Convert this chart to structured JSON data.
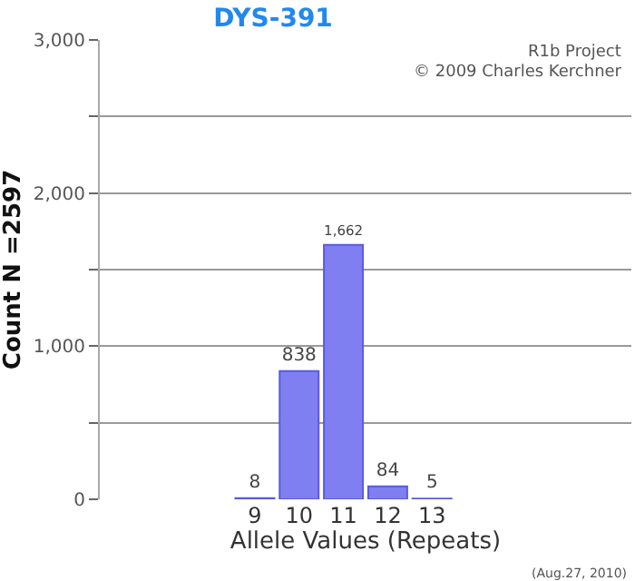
{
  "chart_data": {
    "type": "bar",
    "title": "DYS-391",
    "xlabel": "Allele Values (Repeats)",
    "ylabel": "Count N =2597",
    "categories": [
      null,
      null,
      null,
      "9",
      "10",
      "11",
      "12",
      "13",
      null,
      null,
      null,
      null
    ],
    "values": [
      null,
      null,
      null,
      8,
      838,
      1662,
      84,
      5,
      null,
      null,
      null,
      null
    ],
    "color": "#7f7ff2",
    "value_labels": [
      null,
      null,
      null,
      "8",
      "838",
      "1,662",
      "84",
      "5",
      null,
      null,
      null,
      null
    ],
    "ylim": [
      0,
      3000
    ],
    "yticks": [
      {
        "value": 0,
        "label": "0"
      },
      {
        "value": 500,
        "label": null
      },
      {
        "value": 1000,
        "label": "1,000"
      },
      {
        "value": 1500,
        "label": null
      },
      {
        "value": 2000,
        "label": "2,000"
      },
      {
        "value": 2500,
        "label": null
      },
      {
        "value": 3000,
        "label": "3,000"
      }
    ],
    "grid": "y",
    "annotations": [
      "R1b Project",
      "© 2009 Charles Kerchner",
      "(Aug.27, 2010)"
    ]
  }
}
